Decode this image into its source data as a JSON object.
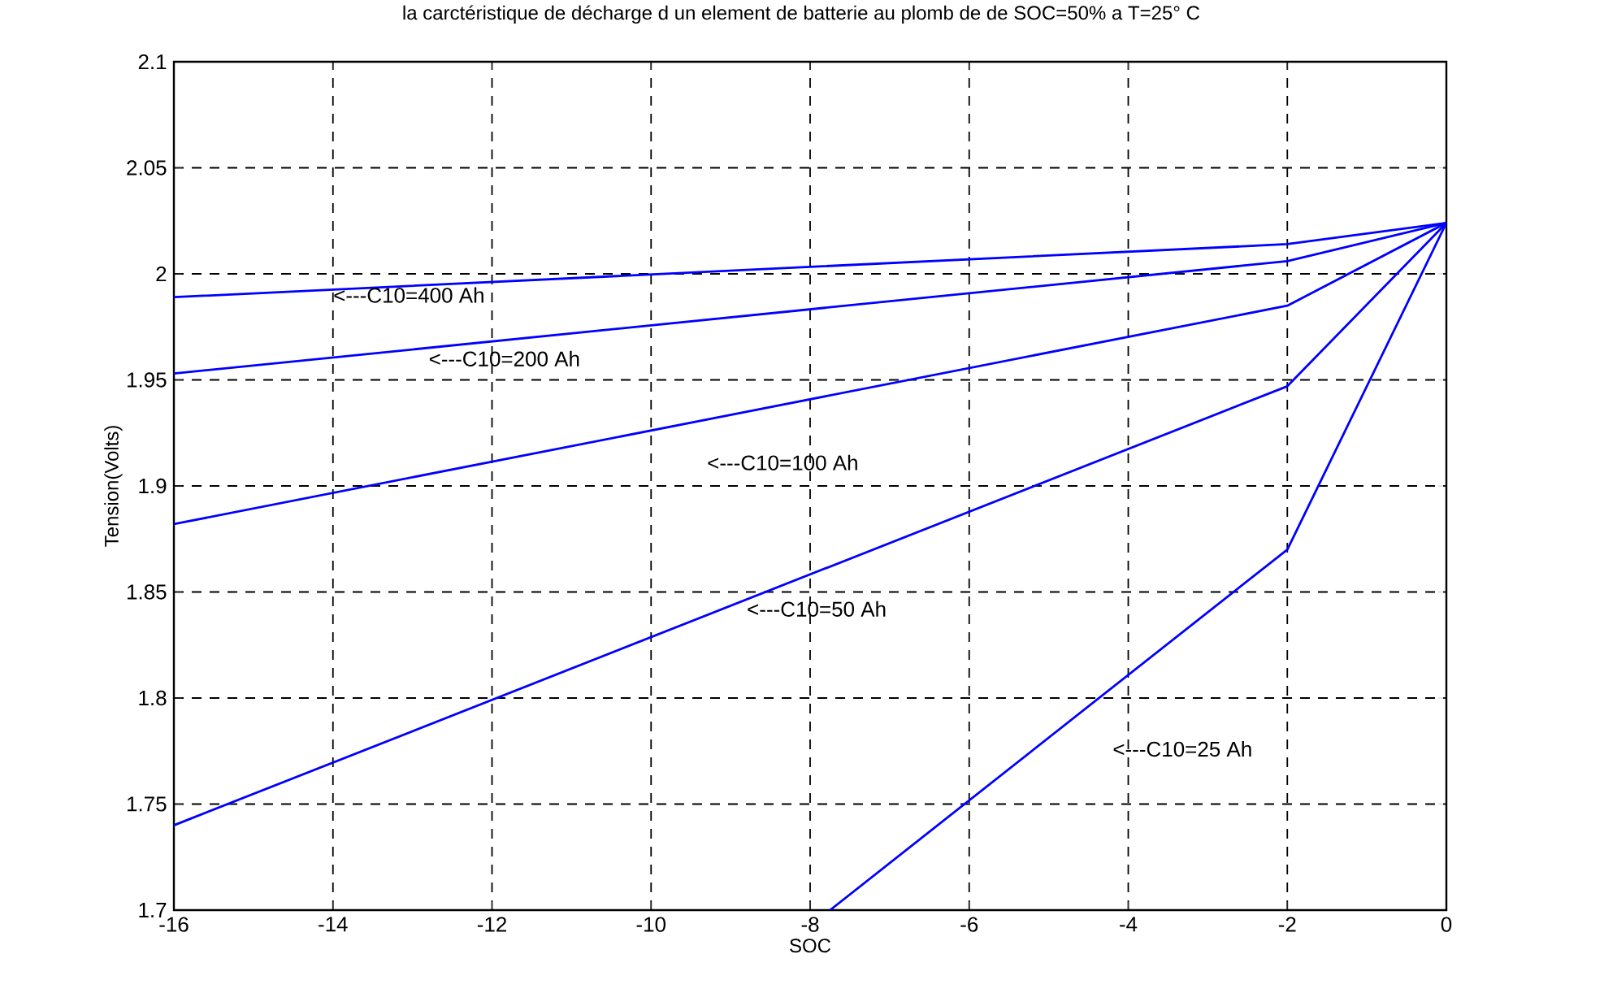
{
  "chart_data": {
    "type": "line",
    "title": "la carctéristique de décharge d un element de batterie au plomb de de SOC=50% a T=25° C",
    "xlabel": "SOC",
    "ylabel": "Tension(Volts)",
    "xlim": [
      -16,
      0
    ],
    "ylim": [
      1.7,
      2.1
    ],
    "xticks": [
      -16,
      -14,
      -12,
      -10,
      -8,
      -6,
      -4,
      -2,
      0
    ],
    "yticks": [
      1.7,
      1.75,
      1.8,
      1.85,
      1.9,
      1.95,
      2,
      2.05,
      2.1
    ],
    "grid": true,
    "line_style": "solid",
    "series": [
      {
        "color": "#0000ff",
        "x": [
          -16,
          -2,
          0
        ],
        "values": [
          1.989,
          2.014,
          2.024
        ]
      },
      {
        "color": "#0000ff",
        "x": [
          -16,
          -2,
          0
        ],
        "values": [
          1.953,
          2.006,
          2.024
        ]
      },
      {
        "color": "#0000ff",
        "x": [
          -16,
          -2,
          0
        ],
        "values": [
          1.882,
          1.985,
          2.024
        ]
      },
      {
        "color": "#0000ff",
        "x": [
          -16,
          -2,
          0
        ],
        "values": [
          1.74,
          1.947,
          2.024
        ]
      },
      {
        "color": "#0000ff",
        "x": [
          -7.75,
          -2,
          0
        ],
        "values": [
          1.7,
          1.87,
          2.024
        ]
      }
    ],
    "annotations": [
      "<---C10=400 Ah",
      "<---C10=200 Ah",
      "<---C10=100 Ah",
      "<---C10=50 Ah",
      "<---C10=25 Ah"
    ]
  }
}
